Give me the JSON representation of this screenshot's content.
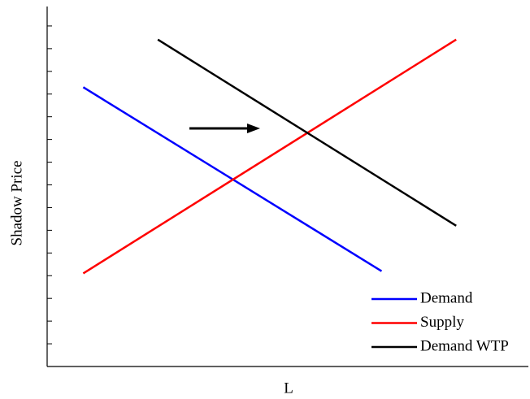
{
  "chart_data": {
    "type": "line",
    "x_label": "L",
    "y_label": "Shadow Price",
    "xlim": [
      0,
      20
    ],
    "ylim": [
      0,
      16
    ],
    "yticks": [
      1,
      2,
      3,
      4,
      5,
      6,
      7,
      8,
      9,
      10,
      11,
      12,
      13,
      14,
      15
    ],
    "legend": "lower right",
    "series": [
      {
        "name": "Demand",
        "color": "#0000ff",
        "x": [
          1.5,
          13.9
        ],
        "values": [
          12.3,
          4.2
        ]
      },
      {
        "name": "Supply",
        "color": "#ff0000",
        "x": [
          1.5,
          17.0
        ],
        "values": [
          4.1,
          14.4
        ]
      },
      {
        "name": "Demand WTP",
        "color": "#000000",
        "x": [
          4.6,
          17.0
        ],
        "values": [
          14.4,
          6.2
        ]
      }
    ]
  }
}
